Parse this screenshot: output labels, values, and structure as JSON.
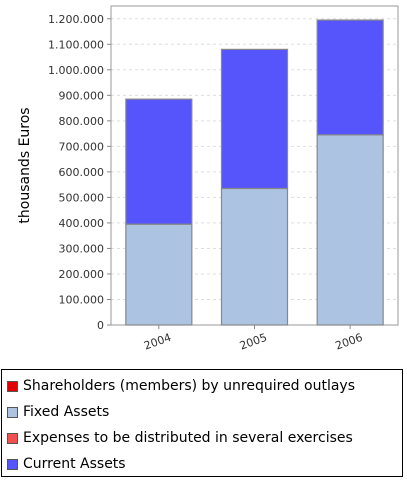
{
  "chart_data": {
    "type": "bar",
    "stacked": true,
    "categories": [
      "2004",
      "2005",
      "2006"
    ],
    "ylabel": "thousands Euros",
    "ylim": [
      0,
      1250000
    ],
    "yticks": [
      0,
      100000,
      200000,
      300000,
      400000,
      500000,
      600000,
      700000,
      800000,
      900000,
      1000000,
      1100000,
      1200000
    ],
    "ytick_labels": [
      "0",
      "100.000",
      "200.000",
      "300.000",
      "400.000",
      "500.000",
      "600.000",
      "700.000",
      "800.000",
      "900.000",
      "1.000.000",
      "1.100.000",
      "1.200.000"
    ],
    "grid": true,
    "legend_position": "bottom",
    "series": [
      {
        "name": "Shareholders (members) by unrequired outlays",
        "color": "#e00000",
        "values": [
          0,
          0,
          0
        ]
      },
      {
        "name": "Fixed Assets",
        "color": "#adc3e2",
        "values": [
          395000,
          535000,
          745000
        ]
      },
      {
        "name": "Expenses to be distributed in several exercises",
        "color": "#f05050",
        "values": [
          0,
          0,
          0
        ]
      },
      {
        "name": "Current Assets",
        "color": "#5555fb",
        "values": [
          490000,
          545000,
          450000
        ]
      }
    ]
  }
}
